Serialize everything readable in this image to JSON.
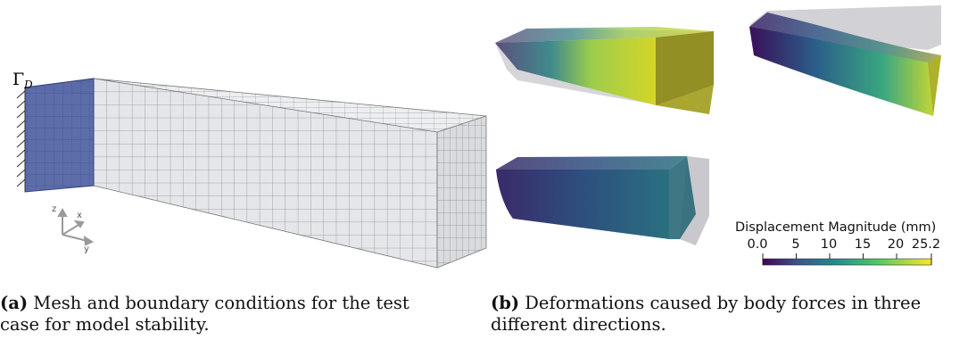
{
  "panel_a": {
    "boundary_label": "Γ",
    "boundary_subscript": "D",
    "axes": {
      "z": "z",
      "x": "x",
      "y": "y"
    },
    "caption_label": "(a)",
    "caption_text_line1": "Mesh and boundary conditions for the test",
    "caption_text_line2": "case for model stability."
  },
  "panel_b": {
    "colorbar": {
      "title": "Displacement Magnitude (mm)",
      "ticks": [
        "0.0",
        "5",
        "10",
        "15",
        "20",
        "25.2"
      ],
      "colormap": "viridis",
      "min": 0.0,
      "max": 25.2
    },
    "caption_label": "(b)",
    "caption_text_line1": "Deformations caused by body forces in three",
    "caption_text_line2": "different directions."
  },
  "colors": {
    "mesh_face": "#e3e5e8",
    "mesh_line": "#8d9095",
    "boundary_face": "#4d5fa0",
    "undeformed": "#c8c8cc"
  }
}
